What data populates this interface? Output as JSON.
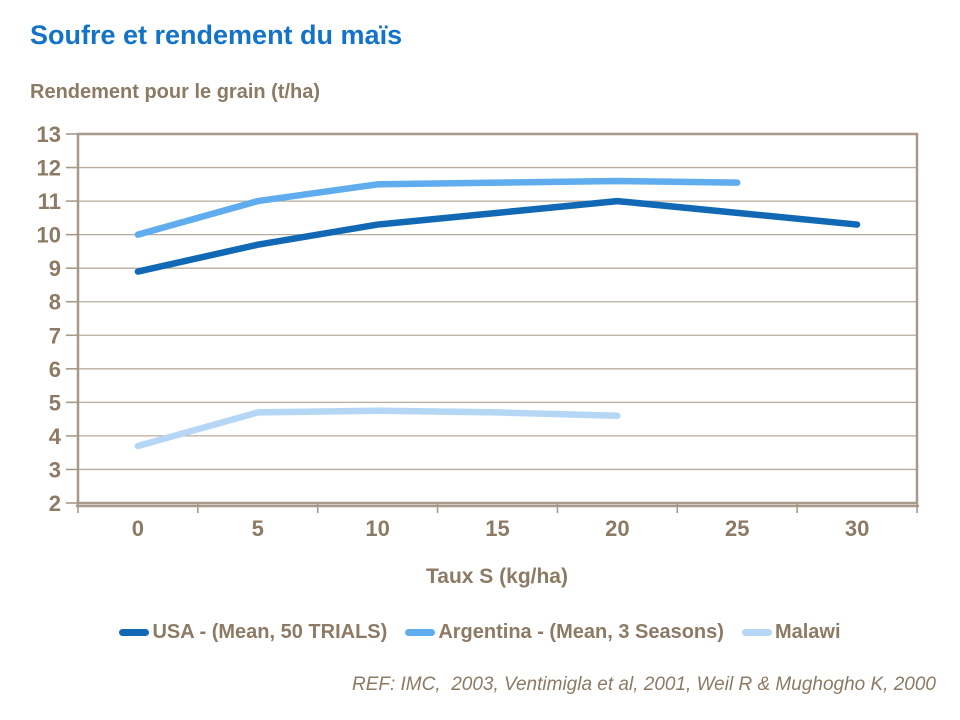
{
  "page": {
    "reference": "REF: IMC,  2003, Ventimigla et al, 2001, Weil R & Mughogho K, 2000"
  },
  "colors": {
    "title": "#1373C8",
    "text_brown": "#8C7A64",
    "gridline": "#B8AC9E",
    "plot_border": "#A89A8A",
    "usa": "#1168B4",
    "argentina": "#5FACEE",
    "malawi": "#B5D7F5"
  },
  "chart_data": {
    "type": "line",
    "title": "Soufre et rendement du maïs",
    "ylabel": "Rendement pour le grain (t/ha)",
    "xlabel": "Taux S (kg/ha)",
    "x_categories": [
      0,
      5,
      10,
      15,
      20,
      25,
      30
    ],
    "y_ticks": [
      2,
      3,
      4,
      5,
      6,
      7,
      8,
      9,
      10,
      11,
      12,
      13
    ],
    "ylim": [
      2,
      13
    ],
    "grid": true,
    "legend_position": "bottom",
    "series": [
      {
        "id": "usa",
        "name": "USA - (Mean, 50 TRIALS)",
        "color_key": "usa",
        "x": [
          0,
          5,
          10,
          15,
          20,
          25,
          30
        ],
        "values": [
          8.9,
          9.7,
          10.3,
          10.65,
          11.0,
          10.65,
          10.3
        ]
      },
      {
        "id": "argentina",
        "name": "Argentina - (Mean, 3 Seasons)",
        "color_key": "argentina",
        "x": [
          0,
          5,
          10,
          15,
          20,
          25
        ],
        "values": [
          10.0,
          11.0,
          11.5,
          11.55,
          11.6,
          11.55
        ]
      },
      {
        "id": "malawi",
        "name": "Malawi",
        "color_key": "malawi",
        "x": [
          0,
          5,
          10,
          15,
          20
        ],
        "values": [
          3.7,
          4.7,
          4.75,
          4.7,
          4.6
        ]
      }
    ]
  }
}
